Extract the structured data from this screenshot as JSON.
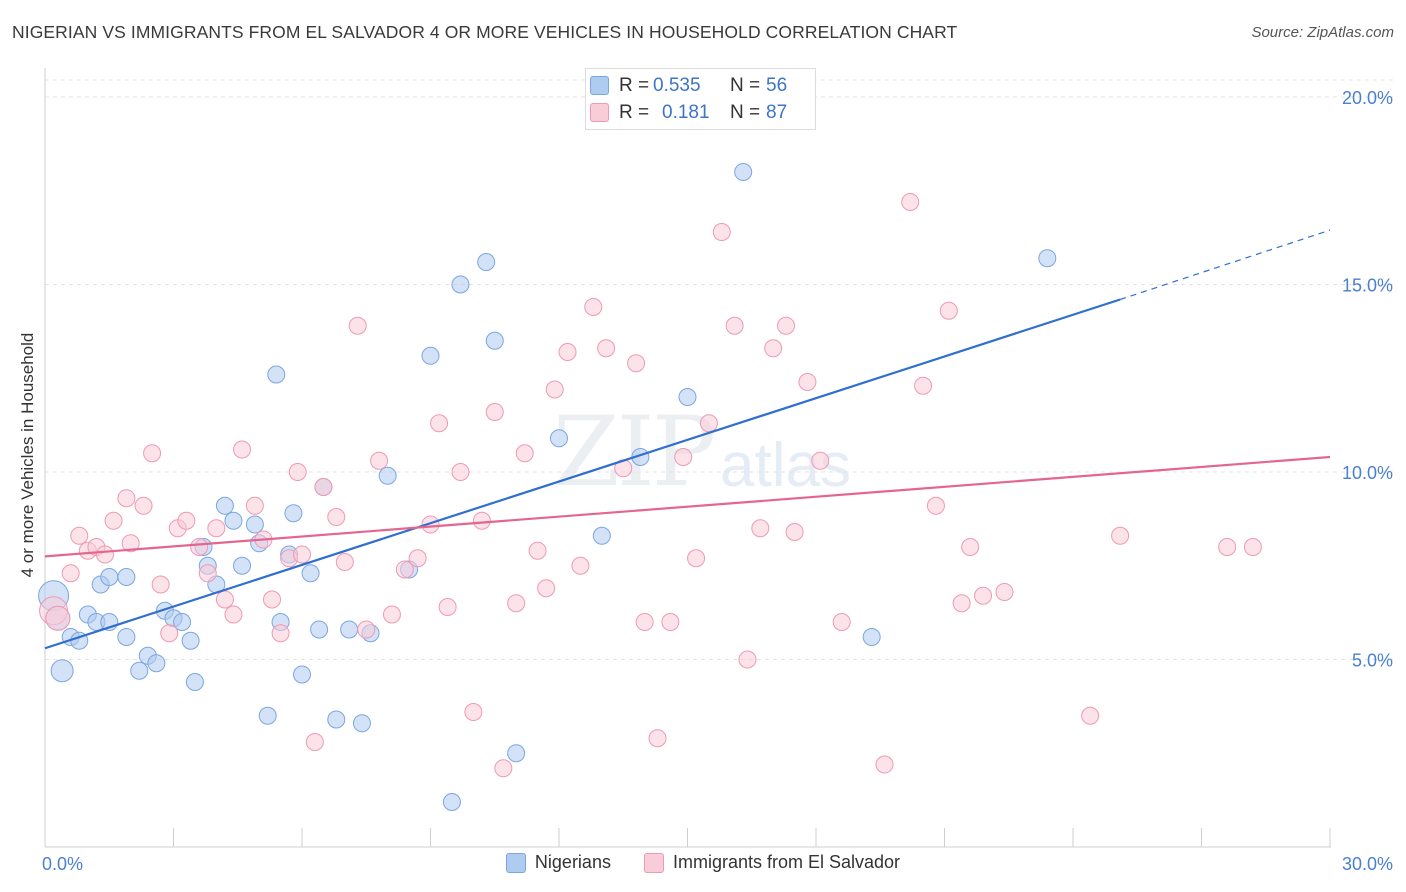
{
  "header": {
    "title": "NIGERIAN VS IMMIGRANTS FROM EL SALVADOR 4 OR MORE VEHICLES IN HOUSEHOLD CORRELATION CHART",
    "source": "Source: ZipAtlas.com"
  },
  "watermark": {
    "zip": "ZIP",
    "atlas": "atlas"
  },
  "legend_box": {
    "rows": [
      {
        "r_label": "R =",
        "r_value": "0.535",
        "n_label": "N =",
        "n_value": "56",
        "color": "#aecbf0"
      },
      {
        "r_label": "R =",
        "r_value": "0.181",
        "n_label": "N =",
        "n_value": "87",
        "color": "#f7c0d1"
      }
    ]
  },
  "bottom_legend": [
    {
      "label": "Nigerians",
      "color": "#aecbf0",
      "border": "#7ba7e0"
    },
    {
      "label": "Immigrants from El Salvador",
      "color": "#f9ccd9",
      "border": "#ee9ab4"
    }
  ],
  "chart_data": {
    "type": "scatter",
    "title": "NIGERIAN VS IMMIGRANTS FROM EL SALVADOR 4 OR MORE VEHICLES IN HOUSEHOLD CORRELATION CHART",
    "xlabel": "",
    "ylabel": "4 or more Vehicles in Household",
    "xlim": [
      0,
      30
    ],
    "ylim": [
      0,
      20.5
    ],
    "x_tick_labels": [
      {
        "value": 0,
        "label": "0.0%"
      },
      {
        "value": 30,
        "label": "30.0%"
      }
    ],
    "y_tick_labels": [
      {
        "value": 5,
        "label": "5.0%"
      },
      {
        "value": 10,
        "label": "10.0%"
      },
      {
        "value": 15,
        "label": "15.0%"
      },
      {
        "value": 20,
        "label": "20.0%"
      }
    ],
    "x_minor_ticks": [
      3,
      6,
      9,
      12,
      15,
      18,
      21,
      24,
      27
    ],
    "gridlines_y": [
      5,
      10,
      15,
      20
    ],
    "series": [
      {
        "name": "Nigerians",
        "color": "#7ba7e0",
        "fill": "#aecbf0",
        "r": 0.535,
        "n": 56,
        "trend": {
          "x0": 0,
          "y0": 5.3,
          "x1": 25.1,
          "y1": 14.6,
          "dash_to_x": 30,
          "dash_to_y": 16.45
        },
        "points": [
          [
            0.2,
            6.7
          ],
          [
            0.4,
            4.7
          ],
          [
            0.3,
            6.1
          ],
          [
            0.6,
            5.6
          ],
          [
            0.8,
            5.5
          ],
          [
            1.0,
            6.2
          ],
          [
            1.2,
            6.0
          ],
          [
            1.3,
            7.0
          ],
          [
            1.5,
            7.2
          ],
          [
            1.9,
            7.2
          ],
          [
            1.5,
            6.0
          ],
          [
            1.9,
            5.6
          ],
          [
            2.2,
            4.7
          ],
          [
            2.4,
            5.1
          ],
          [
            2.6,
            4.9
          ],
          [
            2.8,
            6.3
          ],
          [
            3.0,
            6.1
          ],
          [
            3.2,
            6.0
          ],
          [
            3.4,
            5.5
          ],
          [
            3.5,
            4.4
          ],
          [
            3.7,
            8.0
          ],
          [
            3.8,
            7.5
          ],
          [
            4.0,
            7.0
          ],
          [
            4.2,
            9.1
          ],
          [
            4.4,
            8.7
          ],
          [
            4.6,
            7.5
          ],
          [
            4.9,
            8.6
          ],
          [
            5.0,
            8.1
          ],
          [
            5.2,
            3.5
          ],
          [
            5.4,
            12.6
          ],
          [
            5.5,
            6.0
          ],
          [
            5.7,
            7.8
          ],
          [
            5.8,
            8.9
          ],
          [
            6.0,
            4.6
          ],
          [
            6.2,
            7.3
          ],
          [
            6.4,
            5.8
          ],
          [
            6.5,
            9.6
          ],
          [
            6.8,
            3.4
          ],
          [
            7.1,
            5.8
          ],
          [
            7.4,
            3.3
          ],
          [
            7.6,
            5.7
          ],
          [
            8.0,
            9.9
          ],
          [
            8.5,
            7.4
          ],
          [
            9.0,
            13.1
          ],
          [
            9.5,
            1.2
          ],
          [
            9.7,
            15.0
          ],
          [
            10.3,
            15.6
          ],
          [
            10.5,
            13.5
          ],
          [
            11.0,
            2.5
          ],
          [
            12.0,
            10.9
          ],
          [
            13.0,
            8.3
          ],
          [
            13.9,
            10.4
          ],
          [
            15.0,
            12.0
          ],
          [
            16.3,
            18.0
          ],
          [
            19.3,
            5.6
          ],
          [
            23.4,
            15.7
          ]
        ]
      },
      {
        "name": "Immigrants from El Salvador",
        "color": "#ee9ab4",
        "fill": "#f9ccd9",
        "r": 0.181,
        "n": 87,
        "trend": {
          "x0": 0,
          "y0": 7.75,
          "x1": 30,
          "y1": 10.4
        },
        "points": [
          [
            0.2,
            6.3
          ],
          [
            0.3,
            6.1
          ],
          [
            0.6,
            7.3
          ],
          [
            0.8,
            8.3
          ],
          [
            1.0,
            7.9
          ],
          [
            1.2,
            8.0
          ],
          [
            1.4,
            7.8
          ],
          [
            1.6,
            8.7
          ],
          [
            1.9,
            9.3
          ],
          [
            2.0,
            8.1
          ],
          [
            2.3,
            9.1
          ],
          [
            2.5,
            10.5
          ],
          [
            2.7,
            7.0
          ],
          [
            2.9,
            5.7
          ],
          [
            3.1,
            8.5
          ],
          [
            3.3,
            8.7
          ],
          [
            3.6,
            8.0
          ],
          [
            3.8,
            7.3
          ],
          [
            4.0,
            8.5
          ],
          [
            4.2,
            6.6
          ],
          [
            4.4,
            6.2
          ],
          [
            4.6,
            10.6
          ],
          [
            4.9,
            9.1
          ],
          [
            5.1,
            8.2
          ],
          [
            5.3,
            6.6
          ],
          [
            5.5,
            5.7
          ],
          [
            5.7,
            7.7
          ],
          [
            5.9,
            10.0
          ],
          [
            6.0,
            7.8
          ],
          [
            6.3,
            2.8
          ],
          [
            6.5,
            9.6
          ],
          [
            6.8,
            8.8
          ],
          [
            7.0,
            7.6
          ],
          [
            7.3,
            13.9
          ],
          [
            7.5,
            5.8
          ],
          [
            7.8,
            10.3
          ],
          [
            8.1,
            6.2
          ],
          [
            8.4,
            7.4
          ],
          [
            8.7,
            7.7
          ],
          [
            9.0,
            8.6
          ],
          [
            9.2,
            11.3
          ],
          [
            9.4,
            6.4
          ],
          [
            9.7,
            10.0
          ],
          [
            10.0,
            3.6
          ],
          [
            10.2,
            8.7
          ],
          [
            10.5,
            11.6
          ],
          [
            10.7,
            2.1
          ],
          [
            11.0,
            6.5
          ],
          [
            11.2,
            10.5
          ],
          [
            11.5,
            7.9
          ],
          [
            11.7,
            6.9
          ],
          [
            11.9,
            12.2
          ],
          [
            12.2,
            13.2
          ],
          [
            12.5,
            7.5
          ],
          [
            12.8,
            14.4
          ],
          [
            13.1,
            13.3
          ],
          [
            13.5,
            10.1
          ],
          [
            13.8,
            12.9
          ],
          [
            14.0,
            6.0
          ],
          [
            14.3,
            2.9
          ],
          [
            14.6,
            6.0
          ],
          [
            14.9,
            10.4
          ],
          [
            15.2,
            7.7
          ],
          [
            15.5,
            11.3
          ],
          [
            15.8,
            16.4
          ],
          [
            16.1,
            13.9
          ],
          [
            16.4,
            5.0
          ],
          [
            16.7,
            8.5
          ],
          [
            17.0,
            13.3
          ],
          [
            17.3,
            13.9
          ],
          [
            17.5,
            8.4
          ],
          [
            17.8,
            12.4
          ],
          [
            18.1,
            10.3
          ],
          [
            18.6,
            6.0
          ],
          [
            19.6,
            2.2
          ],
          [
            20.2,
            17.2
          ],
          [
            20.5,
            12.3
          ],
          [
            20.8,
            9.1
          ],
          [
            21.1,
            14.3
          ],
          [
            21.4,
            6.5
          ],
          [
            21.6,
            8.0
          ],
          [
            21.9,
            6.7
          ],
          [
            22.4,
            6.8
          ],
          [
            25.1,
            8.3
          ],
          [
            24.4,
            3.5
          ],
          [
            27.6,
            8.0
          ],
          [
            28.2,
            8.0
          ]
        ]
      }
    ]
  }
}
